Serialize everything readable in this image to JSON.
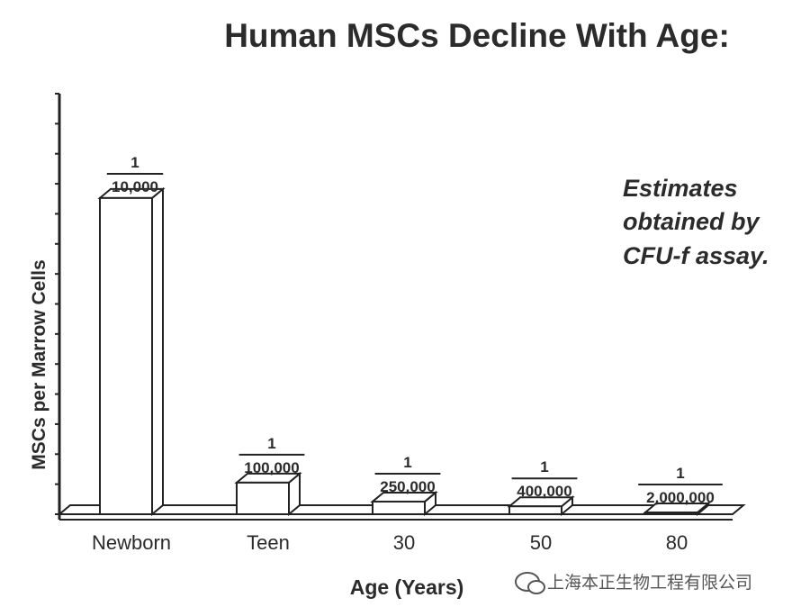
{
  "chart_data": {
    "type": "bar",
    "title": "Human MSCs Decline With Age:",
    "ylabel": "MSCs per Marrow Cells",
    "xlabel": "Age (Years)",
    "annotation": [
      "Estimates",
      "obtained by",
      "CFU-f assay."
    ],
    "categories": [
      "Newborn",
      "Teen",
      "30",
      "50",
      "80"
    ],
    "value_labels": [
      {
        "numerator": "1",
        "denominator": "10,000"
      },
      {
        "numerator": "1",
        "denominator": "100,000"
      },
      {
        "numerator": "1",
        "denominator": "250,000"
      },
      {
        "numerator": "1",
        "denominator": "400,000"
      },
      {
        "numerator": "1",
        "denominator": "2,000,000"
      }
    ],
    "values": [
      0.0001,
      1e-05,
      4e-06,
      2.5e-06,
      5e-07
    ],
    "ylim": [
      0,
      0.000133
    ],
    "grid": false,
    "legend": "none"
  },
  "watermark": "上海本正生物工程有限公司"
}
